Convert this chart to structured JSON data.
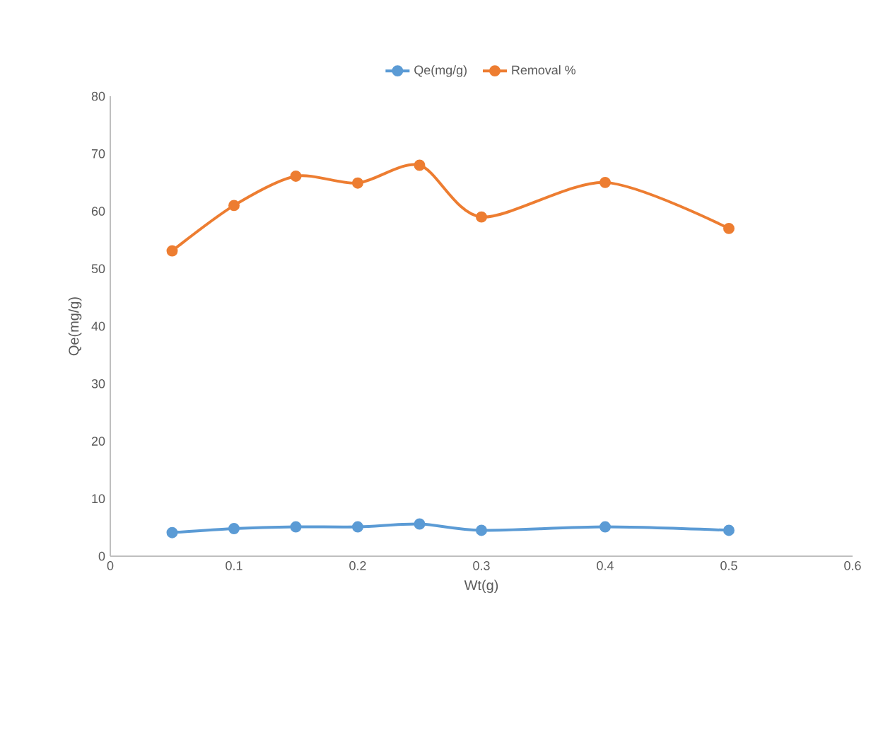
{
  "chart_data": {
    "type": "line",
    "xlabel": "Wt(g)",
    "ylabel": "Qe(mg/g)",
    "x": [
      0.05,
      0.1,
      0.15,
      0.2,
      0.25,
      0.3,
      0.4,
      0.5
    ],
    "series": [
      {
        "name": "Qe(mg/g)",
        "color": "#5b9bd5",
        "values": [
          4.1,
          4.8,
          5.1,
          5.1,
          5.6,
          4.5,
          5.1,
          4.5
        ]
      },
      {
        "name": "Removal %",
        "color": "#ed7d31",
        "values": [
          53.1,
          61.0,
          66.1,
          64.9,
          68.0,
          59.0,
          65.0,
          57.0
        ]
      }
    ],
    "xlim": [
      0,
      0.6
    ],
    "xticks": [
      0,
      0.1,
      0.2,
      0.3,
      0.4,
      0.5,
      0.6
    ],
    "ylim": [
      0,
      80
    ],
    "yticks": [
      0,
      10,
      20,
      30,
      40,
      50,
      60,
      70,
      80
    ],
    "grid": false,
    "legend": "top",
    "marker": "circle",
    "line_style": "solid"
  }
}
